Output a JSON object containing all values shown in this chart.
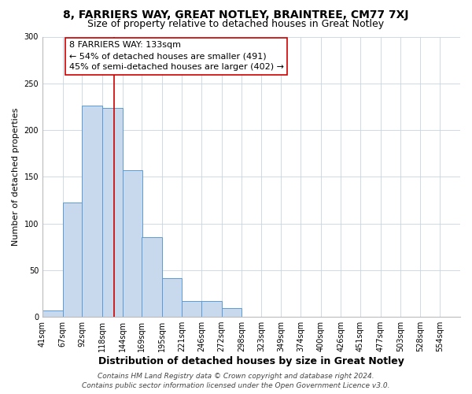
{
  "title1": "8, FARRIERS WAY, GREAT NOTLEY, BRAINTREE, CM77 7XJ",
  "title2": "Size of property relative to detached houses in Great Notley",
  "xlabel": "Distribution of detached houses by size in Great Notley",
  "ylabel": "Number of detached properties",
  "bin_labels": [
    "41sqm",
    "67sqm",
    "92sqm",
    "118sqm",
    "144sqm",
    "169sqm",
    "195sqm",
    "221sqm",
    "246sqm",
    "272sqm",
    "298sqm",
    "323sqm",
    "349sqm",
    "374sqm",
    "400sqm",
    "426sqm",
    "451sqm",
    "477sqm",
    "503sqm",
    "528sqm",
    "554sqm"
  ],
  "bin_left_edges": [
    41,
    67,
    92,
    118,
    144,
    169,
    195,
    221,
    246,
    272,
    298,
    323,
    349,
    374,
    400,
    426,
    451,
    477,
    503,
    528,
    554
  ],
  "bin_width": 26,
  "bar_heights": [
    7,
    122,
    226,
    224,
    157,
    85,
    41,
    17,
    17,
    9,
    0,
    0,
    0,
    0,
    0,
    0,
    0,
    0,
    0,
    0,
    0
  ],
  "bar_color": "#c9d9ed",
  "bar_edge_color": "#5b9bd5",
  "ylim": [
    0,
    300
  ],
  "yticks": [
    0,
    50,
    100,
    150,
    200,
    250,
    300
  ],
  "property_size": 133,
  "vline_color": "#cc0000",
  "annotation_title": "8 FARRIERS WAY: 133sqm",
  "annotation_line1": "← 54% of detached houses are smaller (491)",
  "annotation_line2": "45% of semi-detached houses are larger (402) →",
  "annotation_box_color": "#ffffff",
  "annotation_box_edge": "#cc0000",
  "footer1": "Contains HM Land Registry data © Crown copyright and database right 2024.",
  "footer2": "Contains public sector information licensed under the Open Government Licence v3.0.",
  "bg_color": "#ffffff",
  "grid_color": "#c8d4e3",
  "title1_fontsize": 10,
  "title2_fontsize": 9,
  "xlabel_fontsize": 9,
  "ylabel_fontsize": 8,
  "tick_fontsize": 7,
  "annotation_fontsize": 8,
  "footer_fontsize": 6.5
}
